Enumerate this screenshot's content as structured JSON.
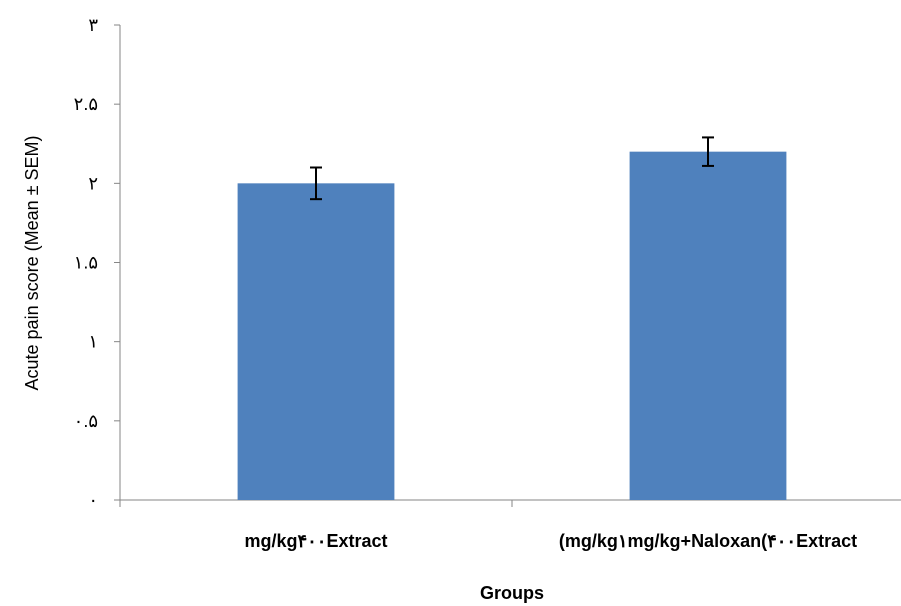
{
  "chart_data": {
    "type": "bar",
    "categories": [
      "mg/kg۴۰۰Extract",
      "(mg/kg۱mg/kg+Naloxan(۴۰۰Extract"
    ],
    "values": [
      2.0,
      2.2
    ],
    "error": [
      0.1,
      0.09
    ],
    "xlabel": "Groups",
    "ylabel": "Acute pain score (Mean ± SEM)",
    "ylim": [
      0,
      3
    ],
    "yticks": [
      0,
      0.5,
      1,
      1.5,
      2,
      2.5,
      3
    ],
    "ytick_labels": [
      "۰",
      "۰.۵",
      "۱",
      "۱.۵",
      "۲",
      "۲.۵",
      "۳"
    ],
    "bar_color": "#4F81BD",
    "grid": false,
    "legend": "none"
  }
}
